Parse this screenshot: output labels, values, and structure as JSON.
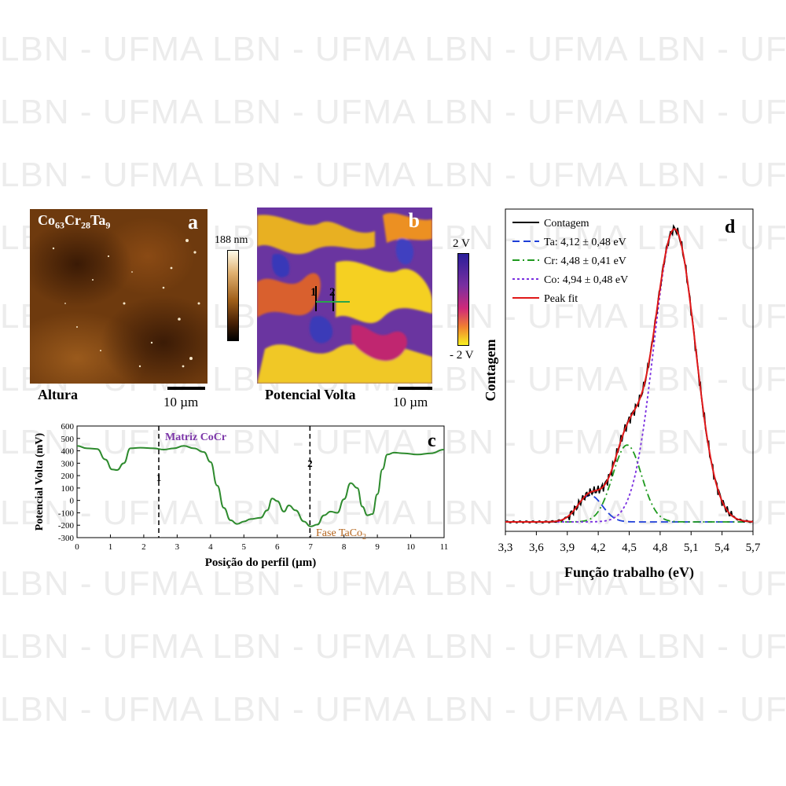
{
  "watermark": {
    "text": "LBN - UFMA LBN - UFMA LBN - UFMA LBN - UFMA"
  },
  "panel_a": {
    "letter": "a",
    "sample_base": [
      "Co",
      "Cr",
      "Ta"
    ],
    "sample_subs": [
      "63",
      "28",
      "9"
    ],
    "caption": "Altura",
    "scale_label": "10 µm",
    "colorbar_max": "188 nm"
  },
  "panel_b": {
    "letter": "b",
    "caption": "Potencial Volta",
    "scale_label": "10 µm",
    "colorbar_max": "2 V",
    "colorbar_min": "- 2 V",
    "marker_1": "1",
    "marker_2": "2"
  },
  "chart_data": [
    {
      "panel": "c",
      "type": "line",
      "xlabel": "Posição do perfil (µm)",
      "ylabel": "Potencial Volta (mV)",
      "xlim": [
        0,
        11
      ],
      "ylim": [
        -300,
        600
      ],
      "xticks": [
        0,
        1,
        2,
        3,
        4,
        5,
        6,
        7,
        8,
        9,
        10,
        11
      ],
      "yticks": [
        -300,
        -200,
        -100,
        0,
        100,
        200,
        300,
        400,
        500,
        600
      ],
      "series": [
        {
          "color": "#2e8b2e",
          "x": [
            0,
            0.3,
            0.6,
            0.85,
            1.05,
            1.2,
            1.4,
            1.6,
            1.9,
            2.3,
            2.6,
            2.9,
            3.2,
            3.5,
            3.8,
            4.0,
            4.2,
            4.4,
            4.6,
            4.8,
            5.0,
            5.2,
            5.5,
            5.7,
            5.85,
            6.0,
            6.2,
            6.35,
            6.55,
            6.8,
            7.0,
            7.2,
            7.4,
            7.6,
            7.8,
            8.0,
            8.2,
            8.4,
            8.55,
            8.7,
            8.85,
            9.0,
            9.15,
            9.3,
            9.5,
            9.8,
            10.2,
            10.6,
            11.0
          ],
          "y": [
            440,
            420,
            415,
            330,
            250,
            245,
            300,
            420,
            425,
            420,
            410,
            420,
            440,
            420,
            390,
            310,
            120,
            -60,
            -160,
            -190,
            -170,
            -150,
            -140,
            -80,
            15,
            -5,
            -90,
            -40,
            -80,
            -170,
            -210,
            -195,
            -120,
            -90,
            -100,
            10,
            140,
            100,
            -50,
            -120,
            -110,
            50,
            250,
            370,
            385,
            380,
            370,
            380,
            410
          ]
        }
      ],
      "annotations": [
        {
          "text": "Matriz CoCr",
          "color": "#7b35a8"
        },
        {
          "text_base": "Fase TaCo",
          "text_sub": "2",
          "color": "#b5651d"
        },
        {
          "text": "1",
          "x": 2.45
        },
        {
          "text": "2",
          "x": 6.98
        },
        {
          "text": "c"
        }
      ]
    },
    {
      "panel": "d",
      "type": "line",
      "xlabel": "Função trabalho (eV)",
      "ylabel": "Contagem",
      "xlim": [
        3.3,
        5.7
      ],
      "xticks": [
        "3,3",
        "3,6",
        "3,9",
        "4,2",
        "4,5",
        "4,8",
        "5,1",
        "5,4",
        "5,7"
      ],
      "ylim": [
        0,
        1
      ],
      "legend_position": "top-left",
      "series": [
        {
          "name": "Contagem",
          "color": "#000000",
          "style": "solid",
          "kind": "data"
        },
        {
          "name": "Ta: 4,12 ± 0,48 eV",
          "color": "#1e3fd8",
          "style": "dashed",
          "center": 4.12,
          "width": 0.12,
          "amplitude": 0.09
        },
        {
          "name": "Cr: 4,48 ± 0,41 eV",
          "color": "#1f9a1f",
          "style": "dashdot",
          "center": 4.48,
          "width": 0.14,
          "amplitude": 0.26
        },
        {
          "name": "Co: 4,94 ± 0,48 eV",
          "color": "#7a2fe0",
          "style": "dotted",
          "center": 4.94,
          "width": 0.2,
          "amplitude": 0.99
        },
        {
          "name": "Peak fit",
          "color": "#e01818",
          "style": "solid",
          "kind": "fit"
        }
      ],
      "annotations": [
        {
          "text": "d"
        }
      ]
    }
  ]
}
